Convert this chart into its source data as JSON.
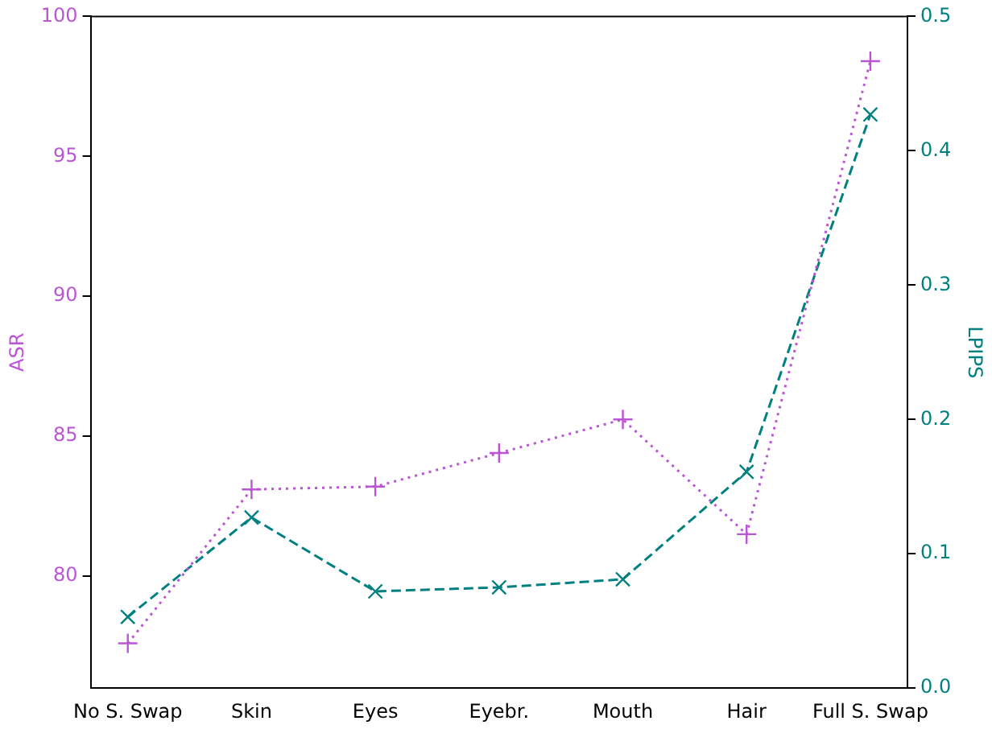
{
  "chart_data": {
    "type": "line",
    "categories": [
      "No S. Swap",
      "Skin",
      "Eyes",
      "Eyebr.",
      "Mouth",
      "Hair",
      "Full S. Swap"
    ],
    "ylabel": "ASR",
    "y2label": "LPIPS",
    "ylim": [
      76,
      100
    ],
    "yticks": [
      80,
      85,
      90,
      95,
      100
    ],
    "y2lim": [
      0,
      0.5
    ],
    "y2ticks": [
      {
        "value": 0,
        "label": "0.0"
      },
      0.1,
      0.2,
      0.3,
      0.4,
      0.5
    ],
    "grid": false,
    "legend": false,
    "series": [
      {
        "color": "#ba55d3",
        "marker": "cross",
        "line_style": "dotted",
        "values": [
          77.6,
          83.1,
          83.2,
          84.4,
          85.6,
          81.5,
          98.4
        ]
      },
      {
        "color": "#008080",
        "marker": "x",
        "line_style": "dashed",
        "axis": "y2",
        "values": [
          0.053,
          0.127,
          0.072,
          0.075,
          0.081,
          0.161,
          0.427
        ]
      }
    ]
  }
}
